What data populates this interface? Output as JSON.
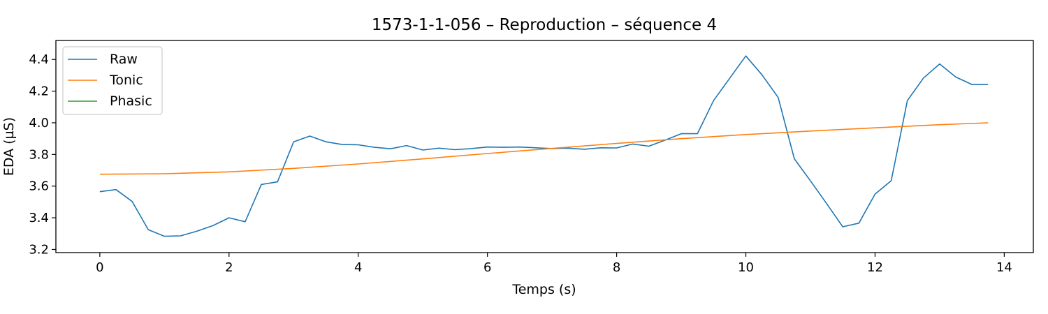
{
  "chart_data": {
    "type": "line",
    "title": "1573-1-1-056 – Reproduction – séquence 4",
    "xlabel": "Temps (s)",
    "ylabel": "EDA (µS)",
    "xlim": [
      -0.68,
      14.45
    ],
    "ylim": [
      3.18,
      4.52
    ],
    "xticks": [
      0,
      2,
      4,
      6,
      8,
      10,
      12,
      14
    ],
    "yticks": [
      3.2,
      3.4,
      3.6,
      3.8,
      4.0,
      4.2,
      4.4
    ],
    "grid": false,
    "legend": "top-left",
    "series": [
      {
        "name": "Raw",
        "color": "#1f77b4",
        "x": [
          0,
          0.25,
          0.5,
          0.75,
          1.0,
          1.25,
          1.5,
          1.75,
          2.0,
          2.25,
          2.5,
          2.75,
          3.0,
          3.25,
          3.5,
          3.75,
          4.0,
          4.25,
          4.5,
          4.75,
          5.0,
          5.25,
          5.5,
          5.75,
          6.0,
          6.25,
          6.5,
          6.75,
          7.0,
          7.25,
          7.5,
          7.75,
          8.0,
          8.25,
          8.5,
          8.75,
          9.0,
          9.25,
          9.5,
          9.75,
          10.0,
          10.25,
          10.5,
          10.75,
          11.0,
          11.25,
          11.5,
          11.75,
          12.0,
          12.25,
          12.5,
          12.75,
          13.0,
          13.25,
          13.5,
          13.75
        ],
        "y": [
          3.565,
          3.578,
          3.503,
          3.325,
          3.283,
          3.286,
          3.315,
          3.35,
          3.4,
          3.375,
          3.61,
          3.627,
          3.88,
          3.916,
          3.88,
          3.863,
          3.861,
          3.845,
          3.836,
          3.856,
          3.828,
          3.84,
          3.83,
          3.837,
          3.847,
          3.845,
          3.847,
          3.842,
          3.837,
          3.84,
          3.833,
          3.842,
          3.841,
          3.866,
          3.852,
          3.89,
          3.931,
          3.931,
          4.14,
          4.281,
          4.422,
          4.303,
          4.16,
          3.773,
          3.633,
          3.49,
          3.343,
          3.366,
          3.55,
          3.634,
          4.14,
          4.283,
          4.372,
          4.289,
          4.242,
          4.242
        ]
      },
      {
        "name": "Tonic",
        "color": "#ff7f0e",
        "x": [
          0,
          1,
          2,
          3,
          4,
          5,
          6,
          7,
          8,
          9,
          10,
          11,
          12,
          13,
          13.75
        ],
        "y": [
          3.675,
          3.678,
          3.69,
          3.712,
          3.74,
          3.772,
          3.806,
          3.838,
          3.87,
          3.9,
          3.926,
          3.948,
          3.968,
          3.988,
          4.0
        ]
      },
      {
        "name": "Phasic",
        "color": "#2ca02c",
        "x": [],
        "y": []
      }
    ]
  }
}
